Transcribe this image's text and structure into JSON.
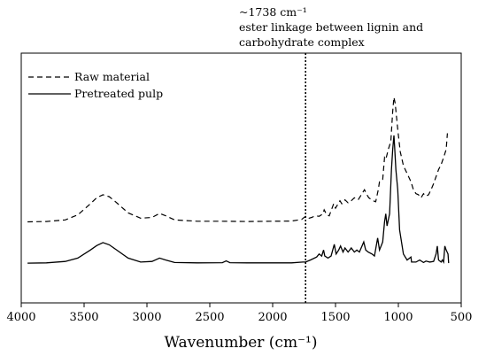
{
  "chart_data": {
    "type": "line",
    "title": "",
    "xlabel": "Wavenumber (cm⁻¹)",
    "ylabel": "",
    "xlim": [
      4000,
      500
    ],
    "x_reversed": true,
    "x_ticks": [
      4000,
      3500,
      3000,
      2500,
      2000,
      1500,
      1000,
      500
    ],
    "x_tick_labels": [
      "4000",
      "3500",
      "3000",
      "2500",
      "2000",
      "1500",
      "1000",
      "500"
    ],
    "ylim": [
      0,
      1
    ],
    "grid": false,
    "legend_position": "top-left",
    "annotation": {
      "x": 1738,
      "lines": [
        "~1738 cm⁻¹",
        "ester linkage between lignin and",
        "carbohydrate complex"
      ],
      "line_style": "dotted"
    },
    "series": [
      {
        "name": "Raw material",
        "line_style": "dashed",
        "color": "#000000",
        "points": [
          [
            3950,
            0.24
          ],
          [
            3800,
            0.242
          ],
          [
            3650,
            0.25
          ],
          [
            3550,
            0.275
          ],
          [
            3450,
            0.33
          ],
          [
            3400,
            0.36
          ],
          [
            3350,
            0.375
          ],
          [
            3300,
            0.365
          ],
          [
            3250,
            0.34
          ],
          [
            3150,
            0.285
          ],
          [
            3050,
            0.258
          ],
          [
            2960,
            0.262
          ],
          [
            2900,
            0.282
          ],
          [
            2850,
            0.27
          ],
          [
            2780,
            0.25
          ],
          [
            2600,
            0.243
          ],
          [
            2400,
            0.243
          ],
          [
            2200,
            0.242
          ],
          [
            2000,
            0.243
          ],
          [
            1850,
            0.244
          ],
          [
            1770,
            0.252
          ],
          [
            1738,
            0.268
          ],
          [
            1710,
            0.258
          ],
          [
            1690,
            0.262
          ],
          [
            1660,
            0.27
          ],
          [
            1630,
            0.268
          ],
          [
            1600,
            0.28
          ],
          [
            1590,
            0.3
          ],
          [
            1570,
            0.275
          ],
          [
            1550,
            0.27
          ],
          [
            1515,
            0.33
          ],
          [
            1500,
            0.308
          ],
          [
            1465,
            0.345
          ],
          [
            1450,
            0.33
          ],
          [
            1425,
            0.35
          ],
          [
            1400,
            0.335
          ],
          [
            1375,
            0.345
          ],
          [
            1350,
            0.36
          ],
          [
            1320,
            0.35
          ],
          [
            1270,
            0.4
          ],
          [
            1250,
            0.375
          ],
          [
            1235,
            0.36
          ],
          [
            1200,
            0.345
          ],
          [
            1180,
            0.34
          ],
          [
            1160,
            0.4
          ],
          [
            1150,
            0.44
          ],
          [
            1125,
            0.45
          ],
          [
            1110,
            0.56
          ],
          [
            1100,
            0.55
          ],
          [
            1080,
            0.6
          ],
          [
            1060,
            0.64
          ],
          [
            1045,
            0.79
          ],
          [
            1035,
            0.86
          ],
          [
            1025,
            0.83
          ],
          [
            1005,
            0.7
          ],
          [
            985,
            0.59
          ],
          [
            960,
            0.52
          ],
          [
            930,
            0.48
          ],
          [
            900,
            0.44
          ],
          [
            880,
            0.4
          ],
          [
            860,
            0.38
          ],
          [
            840,
            0.375
          ],
          [
            820,
            0.36
          ],
          [
            800,
            0.38
          ],
          [
            780,
            0.368
          ],
          [
            760,
            0.375
          ],
          [
            740,
            0.4
          ],
          [
            720,
            0.43
          ],
          [
            700,
            0.465
          ],
          [
            680,
            0.5
          ],
          [
            660,
            0.525
          ],
          [
            640,
            0.56
          ],
          [
            620,
            0.6
          ],
          [
            610,
            0.68
          ],
          [
            602,
            0.66
          ]
        ]
      },
      {
        "name": "Pretreated pulp",
        "line_style": "solid",
        "color": "#000000",
        "points": [
          [
            3950,
            0.035
          ],
          [
            3800,
            0.036
          ],
          [
            3650,
            0.043
          ],
          [
            3550,
            0.06
          ],
          [
            3450,
            0.1
          ],
          [
            3400,
            0.122
          ],
          [
            3350,
            0.137
          ],
          [
            3300,
            0.126
          ],
          [
            3250,
            0.104
          ],
          [
            3150,
            0.06
          ],
          [
            3050,
            0.04
          ],
          [
            2960,
            0.043
          ],
          [
            2900,
            0.06
          ],
          [
            2850,
            0.05
          ],
          [
            2780,
            0.038
          ],
          [
            2600,
            0.036
          ],
          [
            2400,
            0.037
          ],
          [
            2370,
            0.046
          ],
          [
            2340,
            0.037
          ],
          [
            2200,
            0.036
          ],
          [
            2000,
            0.036
          ],
          [
            1850,
            0.036
          ],
          [
            1760,
            0.04
          ],
          [
            1738,
            0.04
          ],
          [
            1700,
            0.05
          ],
          [
            1650,
            0.065
          ],
          [
            1630,
            0.08
          ],
          [
            1610,
            0.07
          ],
          [
            1595,
            0.1
          ],
          [
            1585,
            0.07
          ],
          [
            1560,
            0.06
          ],
          [
            1535,
            0.07
          ],
          [
            1510,
            0.128
          ],
          [
            1495,
            0.08
          ],
          [
            1475,
            0.1
          ],
          [
            1460,
            0.12
          ],
          [
            1440,
            0.09
          ],
          [
            1425,
            0.11
          ],
          [
            1400,
            0.09
          ],
          [
            1375,
            0.11
          ],
          [
            1350,
            0.09
          ],
          [
            1330,
            0.1
          ],
          [
            1310,
            0.09
          ],
          [
            1275,
            0.14
          ],
          [
            1260,
            0.1
          ],
          [
            1240,
            0.09
          ],
          [
            1210,
            0.08
          ],
          [
            1190,
            0.07
          ],
          [
            1165,
            0.16
          ],
          [
            1150,
            0.1
          ],
          [
            1125,
            0.14
          ],
          [
            1110,
            0.24
          ],
          [
            1100,
            0.28
          ],
          [
            1090,
            0.22
          ],
          [
            1070,
            0.28
          ],
          [
            1055,
            0.5
          ],
          [
            1045,
            0.6
          ],
          [
            1035,
            0.67
          ],
          [
            1030,
            0.62
          ],
          [
            1020,
            0.5
          ],
          [
            1005,
            0.4
          ],
          [
            990,
            0.2
          ],
          [
            960,
            0.08
          ],
          [
            930,
            0.05
          ],
          [
            900,
            0.065
          ],
          [
            895,
            0.04
          ],
          [
            860,
            0.04
          ],
          [
            830,
            0.05
          ],
          [
            800,
            0.038
          ],
          [
            780,
            0.045
          ],
          [
            750,
            0.04
          ],
          [
            720,
            0.043
          ],
          [
            700,
            0.08
          ],
          [
            690,
            0.12
          ],
          [
            680,
            0.05
          ],
          [
            660,
            0.04
          ],
          [
            650,
            0.05
          ],
          [
            640,
            0.04
          ],
          [
            630,
            0.12
          ],
          [
            620,
            0.1
          ],
          [
            612,
            0.09
          ],
          [
            605,
            0.08
          ],
          [
            600,
            0.035
          ]
        ]
      }
    ]
  }
}
